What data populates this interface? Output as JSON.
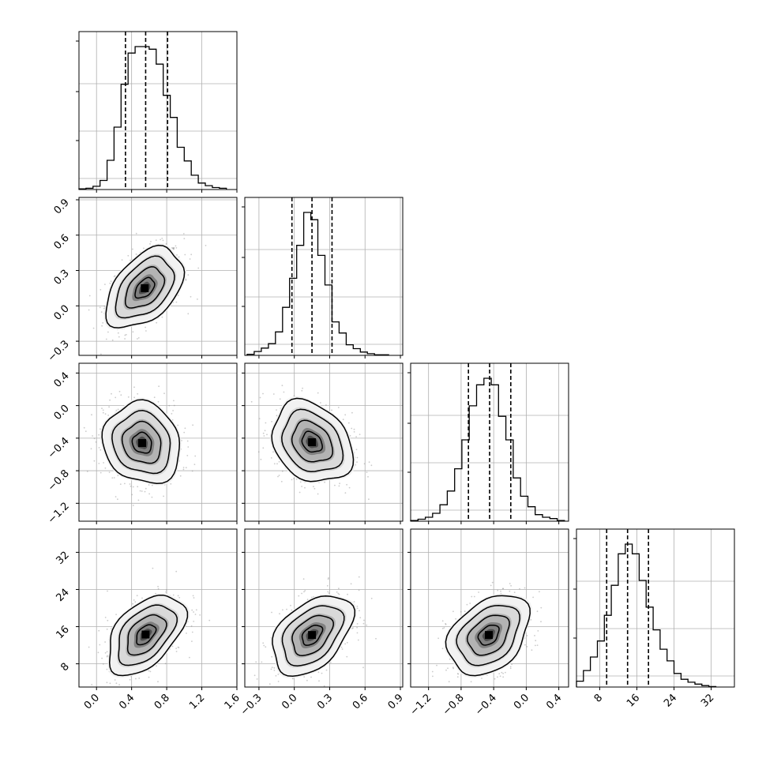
{
  "chart_data": {
    "type": "corner",
    "title": "",
    "n_params": 4,
    "grid": true,
    "quantile_lines": "dashed",
    "params": [
      {
        "xlabel": "",
        "range": [
          -0.2,
          1.6
        ],
        "ticks": [
          0.0,
          0.4,
          0.8,
          1.2,
          1.6
        ],
        "tick_labels": [
          "0.0",
          "0.4",
          "0.8",
          "1.2",
          "1.6"
        ],
        "quantiles": [
          0.33,
          0.56,
          0.81
        ],
        "hist_bins": [
          -0.2,
          -0.12,
          -0.04,
          0.04,
          0.12,
          0.2,
          0.28,
          0.36,
          0.44,
          0.52,
          0.6,
          0.68,
          0.76,
          0.84,
          0.92,
          1.0,
          1.08,
          1.16,
          1.24,
          1.32,
          1.4,
          1.48
        ],
        "hist_counts": [
          1,
          2,
          5,
          14,
          45,
          96,
          162,
          210,
          220,
          220,
          216,
          193,
          145,
          111,
          65,
          44,
          22,
          10,
          6,
          3,
          2
        ]
      },
      {
        "xlabel": "",
        "range": [
          -0.42,
          0.92
        ],
        "ticks": [
          -0.3,
          0.0,
          0.3,
          0.6,
          0.9
        ],
        "tick_labels": [
          "−0.3",
          "0.0",
          "0.3",
          "0.6",
          "0.9"
        ],
        "quantiles": [
          -0.02,
          0.15,
          0.32
        ],
        "hist_bins": [
          -0.4,
          -0.34,
          -0.28,
          -0.22,
          -0.16,
          -0.1,
          -0.04,
          0.02,
          0.08,
          0.14,
          0.2,
          0.26,
          0.32,
          0.38,
          0.44,
          0.5,
          0.56,
          0.62,
          0.68,
          0.74,
          0.8
        ],
        "hist_counts": [
          2,
          7,
          13,
          21,
          42,
          86,
          138,
          197,
          256,
          243,
          179,
          126,
          60,
          40,
          19,
          12,
          6,
          3,
          1,
          1
        ]
      },
      {
        "xlabel": "",
        "range": [
          -1.42,
          0.52
        ],
        "ticks": [
          -1.2,
          -0.8,
          -0.4,
          0.0,
          0.4
        ],
        "tick_labels": [
          "−1.2",
          "−0.8",
          "−0.4",
          "0.0",
          "0.4"
        ],
        "quantiles": [
          -0.71,
          -0.45,
          -0.19
        ],
        "hist_bins": [
          -1.42,
          -1.33,
          -1.24,
          -1.15,
          -1.06,
          -0.97,
          -0.88,
          -0.79,
          -0.7,
          -0.61,
          -0.52,
          -0.43,
          -0.34,
          -0.25,
          -0.16,
          -0.07,
          0.02,
          0.11,
          0.2,
          0.29,
          0.38,
          0.47
        ],
        "hist_counts": [
          1,
          3,
          6,
          12,
          25,
          46,
          80,
          124,
          176,
          208,
          218,
          208,
          160,
          124,
          66,
          38,
          22,
          10,
          6,
          4,
          1
        ]
      },
      {
        "xlabel": "",
        "range": [
          3,
          37
        ],
        "ticks": [
          8,
          16,
          24,
          32
        ],
        "tick_labels": [
          "8",
          "16",
          "24",
          "32"
        ],
        "quantiles": [
          9.5,
          14.0,
          18.5
        ],
        "hist_bins": [
          3,
          4.5,
          6,
          7.5,
          9,
          10.5,
          12,
          13.5,
          15,
          16.5,
          18,
          19.5,
          21,
          22.5,
          24,
          25.5,
          27,
          28.5,
          30,
          31.5,
          33
        ],
        "hist_counts": [
          12,
          34,
          62,
          95,
          148,
          210,
          275,
          295,
          275,
          220,
          165,
          118,
          78,
          54,
          28,
          16,
          10,
          6,
          3,
          1
        ]
      }
    ],
    "pairs": [
      {
        "row": 1,
        "col": 0,
        "mean": [
          0.55,
          0.15
        ],
        "std": [
          0.22,
          0.17
        ],
        "rho": 0.45
      },
      {
        "row": 2,
        "col": 0,
        "mean": [
          0.52,
          -0.46
        ],
        "std": [
          0.22,
          0.25
        ],
        "rho": -0.12
      },
      {
        "row": 2,
        "col": 1,
        "mean": [
          0.15,
          -0.45
        ],
        "std": [
          0.17,
          0.25
        ],
        "rho": -0.25
      },
      {
        "row": 3,
        "col": 0,
        "mean": [
          0.56,
          14.3
        ],
        "std": [
          0.22,
          4.3
        ],
        "rho": 0.48
      },
      {
        "row": 3,
        "col": 1,
        "mean": [
          0.15,
          14.2
        ],
        "std": [
          0.17,
          4.3
        ],
        "rho": 0.43
      },
      {
        "row": 3,
        "col": 2,
        "mean": [
          -0.46,
          14.2
        ],
        "std": [
          0.25,
          4.3
        ],
        "rho": 0.35
      }
    ],
    "contour_levels_sigma": [
      0.5,
      1.0,
      1.5,
      2.0
    ],
    "colors": {
      "line": "#000000",
      "grid": "#b0b0b0",
      "points": "#8c8c8c",
      "density_max": "#000000"
    }
  }
}
